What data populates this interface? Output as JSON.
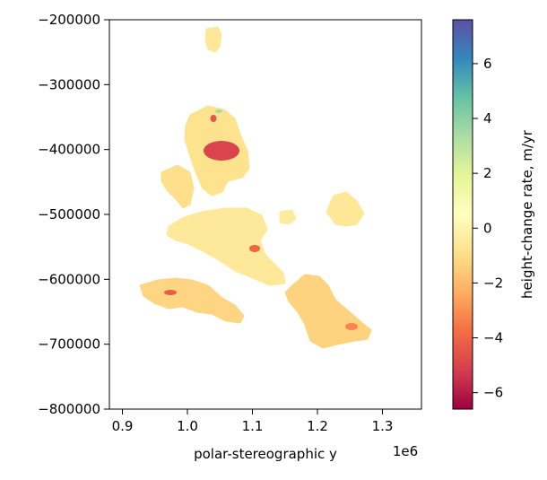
{
  "chart_data": {
    "type": "heatmap",
    "title": "",
    "xlabel": "polar-stereographic y",
    "x_offset_label": "1e6",
    "ylabel": "",
    "xlim": [
      880000,
      1360000
    ],
    "ylim": [
      -800000,
      -200000
    ],
    "x_ticks": [
      900000,
      1000000,
      1100000,
      1200000,
      1300000
    ],
    "x_tick_labels": [
      "0.9",
      "1.0",
      "1.1",
      "1.2",
      "1.3"
    ],
    "y_ticks": [
      -200000,
      -300000,
      -400000,
      -500000,
      -600000,
      -700000,
      -800000
    ],
    "y_tick_labels": [
      "−200000",
      "−300000",
      "−400000",
      "−500000",
      "−600000",
      "−700000",
      "−800000"
    ],
    "colormap": "Spectral",
    "colorbar": {
      "label": "height-change rate, m/yr",
      "range": [
        -6.6,
        7.6
      ],
      "ticks": [
        6,
        4,
        2,
        0,
        -2,
        -4,
        -6
      ],
      "tick_labels": [
        "6",
        "4",
        "2",
        "0",
        "−2",
        "−4",
        "−6"
      ],
      "colors": [
        "#9e0142",
        "#d53e4f",
        "#f46d43",
        "#fdae61",
        "#fee08b",
        "#ffffbf",
        "#e6f598",
        "#abdda4",
        "#66c2a5",
        "#3288bd",
        "#5e4fa2"
      ]
    },
    "regions": [
      {
        "name": "small-northern-patch",
        "rate": -0.6
      },
      {
        "name": "northern-lobe",
        "rate": -0.8
      },
      {
        "name": "large-negative-anomaly",
        "rate": -5.0
      },
      {
        "name": "small-negative-anomaly",
        "rate": -4.5
      },
      {
        "name": "positive-anomaly",
        "rate": 3.5
      },
      {
        "name": "western-arm",
        "rate": -0.9
      },
      {
        "name": "central-body",
        "rate": -0.5
      },
      {
        "name": "central-anomaly",
        "rate": -4.0
      },
      {
        "name": "eastern-patch",
        "rate": -0.4
      },
      {
        "name": "far-east-patch",
        "rate": -0.6
      },
      {
        "name": "southwest-lobe",
        "rate": -1.2
      },
      {
        "name": "southwest-anomaly",
        "rate": -4.2
      },
      {
        "name": "southeast-lobe",
        "rate": -1.3
      },
      {
        "name": "southeast-anomaly",
        "rate": -3.2
      }
    ]
  }
}
